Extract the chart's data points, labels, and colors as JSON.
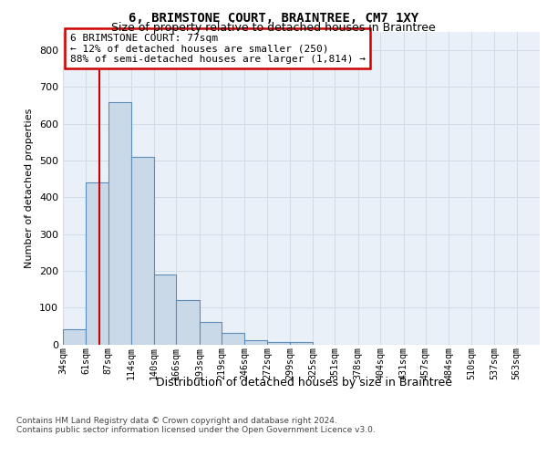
{
  "title1": "6, BRIMSTONE COURT, BRAINTREE, CM7 1XY",
  "title2": "Size of property relative to detached houses in Braintree",
  "xlabel": "Distribution of detached houses by size in Braintree",
  "ylabel": "Number of detached properties",
  "bin_labels": [
    "34sqm",
    "61sqm",
    "87sqm",
    "114sqm",
    "140sqm",
    "166sqm",
    "193sqm",
    "219sqm",
    "246sqm",
    "272sqm",
    "299sqm",
    "325sqm",
    "351sqm",
    "378sqm",
    "404sqm",
    "431sqm",
    "457sqm",
    "484sqm",
    "510sqm",
    "537sqm",
    "563sqm"
  ],
  "bin_edges": [
    34,
    61,
    87,
    114,
    140,
    166,
    193,
    219,
    246,
    272,
    299,
    325,
    351,
    378,
    404,
    431,
    457,
    484,
    510,
    537,
    563
  ],
  "bar_heights": [
    40,
    440,
    660,
    510,
    190,
    120,
    60,
    30,
    10,
    5,
    5,
    0,
    0,
    0,
    0,
    0,
    0,
    0,
    0,
    0
  ],
  "bar_color": "#c9d9e8",
  "bar_edge_color": "#5b8db8",
  "bar_edge_width": 0.8,
  "red_line_x": 77,
  "red_line_color": "#cc0000",
  "annotation_line1": "6 BRIMSTONE COURT: 77sqm",
  "annotation_line2": "← 12% of detached houses are smaller (250)",
  "annotation_line3": "88% of semi-detached houses are larger (1,814) →",
  "annotation_box_color": "#ffffff",
  "annotation_box_edge": "#cc0000",
  "grid_color": "#d0dce8",
  "background_color": "#eaf0f8",
  "ylim": [
    0,
    850
  ],
  "yticks": [
    0,
    100,
    200,
    300,
    400,
    500,
    600,
    700,
    800
  ],
  "footer1": "Contains HM Land Registry data © Crown copyright and database right 2024.",
  "footer2": "Contains public sector information licensed under the Open Government Licence v3.0."
}
